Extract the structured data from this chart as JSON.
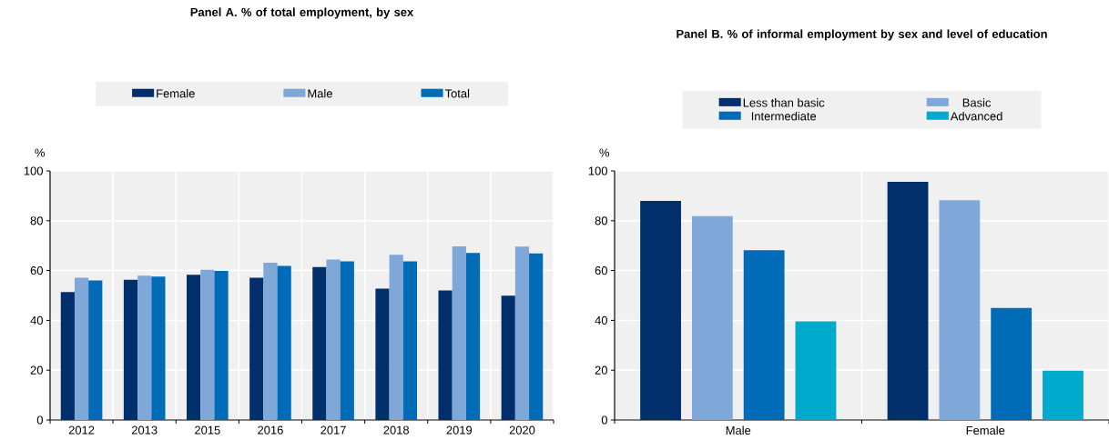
{
  "chart_data": [
    {
      "type": "bar",
      "title": "Panel A. % of total employment, by sex",
      "ylabel": "%",
      "categories": [
        "2012",
        "2013",
        "2015",
        "2016",
        "2017",
        "2018",
        "2019",
        "2020"
      ],
      "series": [
        {
          "name": "Female",
          "color": "#002f6c",
          "values": [
            51.4,
            56.3,
            58.3,
            57.1,
            61.4,
            52.7,
            52.0,
            49.9
          ]
        },
        {
          "name": "Male",
          "color": "#7fa8d9",
          "values": [
            57.1,
            57.9,
            60.3,
            63.1,
            64.4,
            66.3,
            69.7,
            69.6
          ]
        },
        {
          "name": "Total",
          "color": "#006bb6",
          "values": [
            56.0,
            57.6,
            59.9,
            61.9,
            63.7,
            63.7,
            67.1,
            66.9
          ]
        }
      ],
      "ylim": [
        0,
        100
      ],
      "yticks": [
        0,
        20,
        40,
        60,
        80,
        100
      ],
      "grid": true,
      "legend": "top"
    },
    {
      "type": "bar",
      "title": "Panel B. % of informal employment by sex and level of education",
      "ylabel": "%",
      "categories": [
        "Male",
        "Female"
      ],
      "series": [
        {
          "name": "Less than basic",
          "color": "#002f6c",
          "values": [
            88.0,
            95.6
          ]
        },
        {
          "name": "Basic",
          "color": "#7fa8d9",
          "values": [
            81.8,
            88.2
          ]
        },
        {
          "name": "Intermediate",
          "color": "#006bb6",
          "values": [
            68.2,
            45.0
          ]
        },
        {
          "name": "Advanced",
          "color": "#00aacc",
          "values": [
            39.6,
            19.8
          ]
        }
      ],
      "ylim": [
        0,
        100
      ],
      "yticks": [
        0,
        20,
        40,
        60,
        80,
        100
      ],
      "grid": true,
      "legend": "top"
    }
  ]
}
